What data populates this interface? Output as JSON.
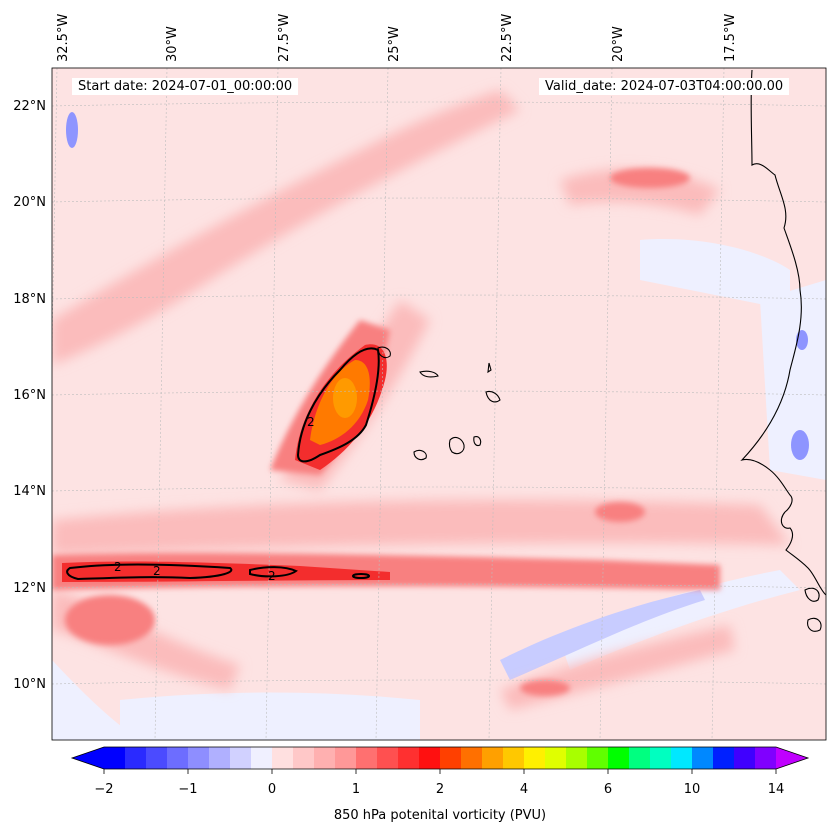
{
  "header": {
    "start_date": "Start date: 2024-07-01_00:00:00",
    "valid_date": "Valid_date: 2024-07-03T04:00:00.00"
  },
  "map": {
    "lon_labels": [
      "32.5°W",
      "30°W",
      "27.5°W",
      "25°W",
      "22.5°W",
      "20°W",
      "17.5°W"
    ],
    "lat_labels": [
      "22°N",
      "20°N",
      "18°N",
      "16°N",
      "14°N",
      "12°N",
      "10°N"
    ],
    "contour_labels": [
      "2",
      "2",
      "2",
      "2"
    ],
    "colors": {
      "background_field": "#fde3e3",
      "light_red": "#fbbcbc",
      "medium_red": "#f88080",
      "red": "#f32d2d",
      "orange": "#ff7a00",
      "dark_orange": "#ff9a00",
      "light_blue": "#eef0ff",
      "medium_blue": "#c8ccff",
      "blue": "#8e95ff",
      "coast": "#000000"
    }
  },
  "colorbar": {
    "label": "850 hPa potenital vorticity (PVU)",
    "ticks": [
      "−2",
      "−1",
      "0",
      "1",
      "2",
      "4",
      "6",
      "10",
      "14"
    ],
    "colors": [
      "#0000ff",
      "#2a2aff",
      "#4b4bff",
      "#6d6dff",
      "#8e8eff",
      "#b0b0ff",
      "#d1d1ff",
      "#f0f0ff",
      "#ffe0e0",
      "#ffc8c8",
      "#ffb0b0",
      "#ff9898",
      "#ff7070",
      "#ff5050",
      "#ff3030",
      "#ff1010",
      "#ff4000",
      "#ff7000",
      "#ffa000",
      "#ffc800",
      "#fff000",
      "#e0ff00",
      "#a8ff00",
      "#60ff00",
      "#00ff00",
      "#00ff80",
      "#00ffc0",
      "#00e8ff",
      "#0088ff",
      "#0020ff",
      "#4000ff",
      "#8000ff"
    ],
    "extend_low_color": "#0000ff",
    "extend_high_color": "#c000ff"
  }
}
